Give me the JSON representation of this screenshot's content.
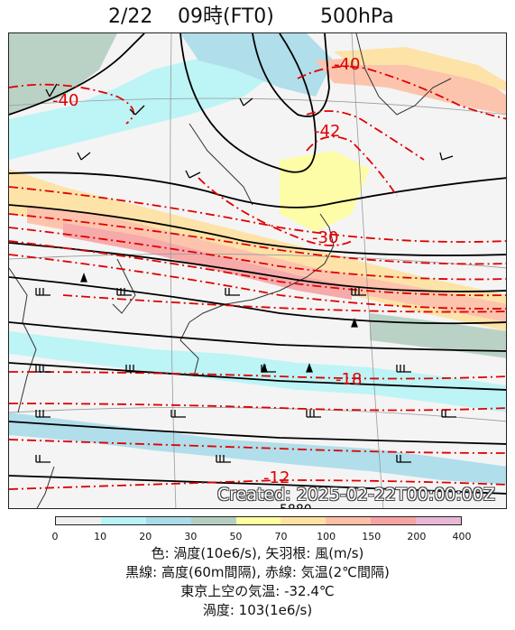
{
  "header": {
    "date": "2/22",
    "time": "09時(FT0)",
    "level": "500hPa"
  },
  "map": {
    "created_stamp": "Created: 2025-02-22T00:00:00Z",
    "height_label": "5880",
    "temperature_labels": [
      "-40",
      "-40",
      "-42",
      "-30",
      "-18",
      "-12"
    ],
    "colors": {
      "contour_height": "#000000",
      "contour_temperature": "#e00000",
      "land_outline": "#333333"
    }
  },
  "colorbar": {
    "ticks": [
      "0",
      "10",
      "20",
      "30",
      "50",
      "70",
      "100",
      "150",
      "200",
      "400"
    ],
    "colors": [
      "#eeeeee",
      "#b8f4f7",
      "#a9dcea",
      "#b4cfc2",
      "#ffffa0",
      "#ffe2a0",
      "#ffbfa6",
      "#f8a3a3",
      "#e8b7d6"
    ]
  },
  "legend": {
    "line1": "色: 渦度(10e6/s),  矢羽根: 風(m/s)",
    "line2": "黒線: 高度(60m間隔),  赤線: 気温(2℃間隔)",
    "line3": "東京上空の気温: -32.4℃",
    "line4": "渦度: 103(1e6/s)"
  }
}
